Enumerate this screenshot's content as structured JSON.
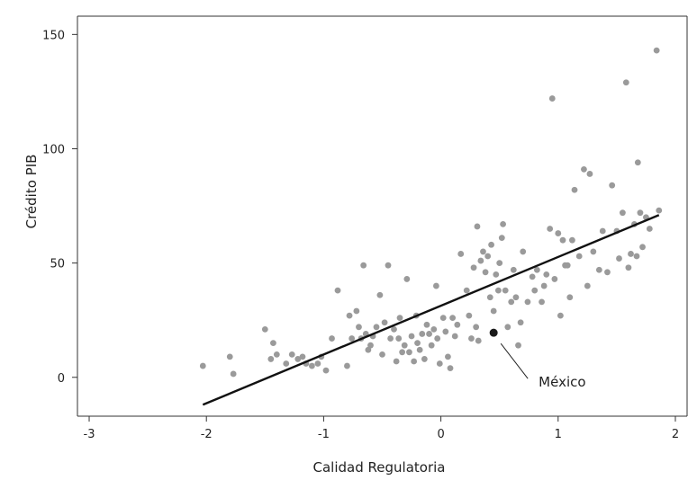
{
  "chart_data": {
    "type": "scatter",
    "title": "",
    "xlabel": "Calidad Regulatoria",
    "ylabel": "Crédito PIB",
    "xlim": [
      -3.1,
      2.1
    ],
    "ylim": [
      -17,
      158
    ],
    "x_ticks": [
      -3,
      -2,
      -1,
      0,
      1,
      2
    ],
    "x_tick_labels": [
      "-3",
      "-2",
      "-1",
      "0",
      "1",
      "2"
    ],
    "y_ticks": [
      0,
      50,
      100,
      150
    ],
    "y_tick_labels": [
      "0",
      "50",
      "100",
      "150"
    ],
    "grid": false,
    "legend": "none",
    "colors": {
      "points": "#9a9a9a",
      "highlight": "#1a1a1a",
      "line": "#111111",
      "axes": "#333333"
    },
    "trend_line": {
      "x": [
        -2.03,
        1.86
      ],
      "y": [
        -12,
        71
      ]
    },
    "highlight": {
      "label": "México",
      "x": 0.45,
      "y": 19.5
    },
    "points": [
      [
        -2.03,
        5
      ],
      [
        -1.8,
        9
      ],
      [
        -1.77,
        1.5
      ],
      [
        -1.5,
        21
      ],
      [
        -1.45,
        8
      ],
      [
        -1.43,
        15
      ],
      [
        -1.4,
        10
      ],
      [
        -1.32,
        6
      ],
      [
        -1.27,
        10
      ],
      [
        -1.22,
        8
      ],
      [
        -1.18,
        9
      ],
      [
        -1.15,
        6
      ],
      [
        -1.1,
        5
      ],
      [
        -1.05,
        6
      ],
      [
        -1.02,
        9
      ],
      [
        -0.98,
        3
      ],
      [
        -0.93,
        17
      ],
      [
        -0.88,
        38
      ],
      [
        -0.8,
        5
      ],
      [
        -0.78,
        27
      ],
      [
        -0.76,
        17
      ],
      [
        -0.72,
        29
      ],
      [
        -0.7,
        22
      ],
      [
        -0.68,
        17
      ],
      [
        -0.66,
        49
      ],
      [
        -0.64,
        19
      ],
      [
        -0.62,
        12
      ],
      [
        -0.6,
        14
      ],
      [
        -0.58,
        18
      ],
      [
        -0.55,
        22
      ],
      [
        -0.52,
        36
      ],
      [
        -0.5,
        10
      ],
      [
        -0.48,
        24
      ],
      [
        -0.45,
        49
      ],
      [
        -0.43,
        17
      ],
      [
        -0.4,
        21
      ],
      [
        -0.38,
        7
      ],
      [
        -0.36,
        17
      ],
      [
        -0.35,
        26
      ],
      [
        -0.33,
        11
      ],
      [
        -0.31,
        14
      ],
      [
        -0.29,
        43
      ],
      [
        -0.27,
        11
      ],
      [
        -0.25,
        18
      ],
      [
        -0.23,
        7
      ],
      [
        -0.21,
        27
      ],
      [
        -0.2,
        15
      ],
      [
        -0.18,
        12
      ],
      [
        -0.16,
        19
      ],
      [
        -0.14,
        8
      ],
      [
        -0.12,
        23
      ],
      [
        -0.1,
        19
      ],
      [
        -0.08,
        14
      ],
      [
        -0.06,
        21
      ],
      [
        -0.04,
        40
      ],
      [
        -0.03,
        17
      ],
      [
        -0.01,
        6
      ],
      [
        0.02,
        26
      ],
      [
        0.04,
        20
      ],
      [
        0.06,
        9
      ],
      [
        0.08,
        4
      ],
      [
        0.1,
        26
      ],
      [
        0.12,
        18
      ],
      [
        0.14,
        23
      ],
      [
        0.17,
        54
      ],
      [
        0.22,
        38
      ],
      [
        0.24,
        27
      ],
      [
        0.26,
        17
      ],
      [
        0.28,
        48
      ],
      [
        0.3,
        22
      ],
      [
        0.31,
        66
      ],
      [
        0.32,
        16
      ],
      [
        0.34,
        51
      ],
      [
        0.36,
        55
      ],
      [
        0.38,
        46
      ],
      [
        0.4,
        53
      ],
      [
        0.42,
        35
      ],
      [
        0.43,
        58
      ],
      [
        0.45,
        29
      ],
      [
        0.47,
        45
      ],
      [
        0.49,
        38
      ],
      [
        0.5,
        50
      ],
      [
        0.52,
        61
      ],
      [
        0.53,
        67
      ],
      [
        0.55,
        38
      ],
      [
        0.57,
        22
      ],
      [
        0.6,
        33
      ],
      [
        0.62,
        47
      ],
      [
        0.64,
        35
      ],
      [
        0.66,
        14
      ],
      [
        0.68,
        24
      ],
      [
        0.7,
        55
      ],
      [
        0.74,
        33
      ],
      [
        0.78,
        44
      ],
      [
        0.8,
        38
      ],
      [
        0.82,
        47
      ],
      [
        0.86,
        33
      ],
      [
        0.88,
        40
      ],
      [
        0.9,
        45
      ],
      [
        0.93,
        65
      ],
      [
        0.95,
        122
      ],
      [
        0.97,
        43
      ],
      [
        1.0,
        63
      ],
      [
        1.02,
        27
      ],
      [
        1.04,
        60
      ],
      [
        1.06,
        49
      ],
      [
        1.08,
        49
      ],
      [
        1.1,
        35
      ],
      [
        1.12,
        60
      ],
      [
        1.14,
        82
      ],
      [
        1.18,
        53
      ],
      [
        1.22,
        91
      ],
      [
        1.25,
        40
      ],
      [
        1.27,
        89
      ],
      [
        1.3,
        55
      ],
      [
        1.35,
        47
      ],
      [
        1.38,
        64
      ],
      [
        1.42,
        46
      ],
      [
        1.46,
        84
      ],
      [
        1.5,
        64
      ],
      [
        1.52,
        52
      ],
      [
        1.55,
        72
      ],
      [
        1.58,
        129
      ],
      [
        1.6,
        48
      ],
      [
        1.62,
        54
      ],
      [
        1.65,
        67
      ],
      [
        1.67,
        53
      ],
      [
        1.68,
        94
      ],
      [
        1.7,
        72
      ],
      [
        1.72,
        57
      ],
      [
        1.75,
        70
      ],
      [
        1.78,
        65
      ],
      [
        1.84,
        143
      ],
      [
        1.86,
        73
      ]
    ]
  }
}
